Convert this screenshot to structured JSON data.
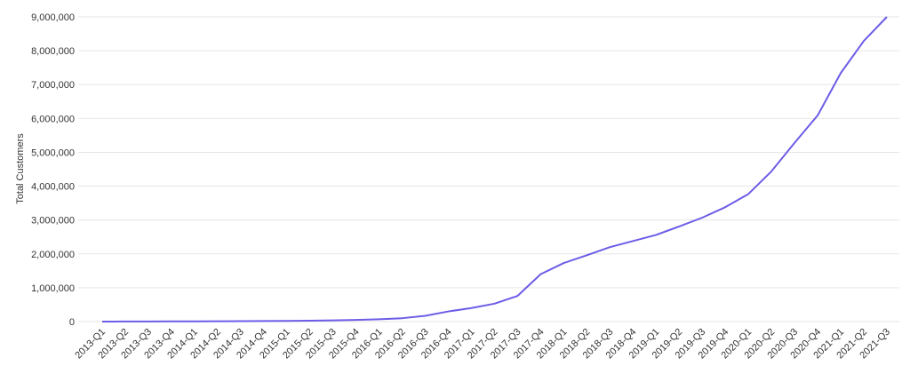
{
  "chart_data": {
    "type": "line",
    "y_label": "Total Customers",
    "categories": [
      "2013-Q1",
      "2013-Q2",
      "2013-Q3",
      "2013-Q4",
      "2014-Q1",
      "2014-Q2",
      "2014-Q3",
      "2014-Q4",
      "2015-Q1",
      "2015-Q2",
      "2015-Q3",
      "2015-Q4",
      "2016-Q1",
      "2016-Q2",
      "2016-Q3",
      "2016-Q4",
      "2017-Q1",
      "2017-Q2",
      "2017-Q3",
      "2017-Q4",
      "2018-Q1",
      "2018-Q2",
      "2018-Q3",
      "2018-Q4",
      "2019-Q1",
      "2019-Q2",
      "2019-Q3",
      "2019-Q4",
      "2020-Q1",
      "2020-Q2",
      "2020-Q3",
      "2020-Q4",
      "2021-Q1",
      "2021-Q2",
      "2021-Q3"
    ],
    "values": [
      0,
      2000,
      4000,
      6000,
      8000,
      10000,
      13000,
      17000,
      20000,
      25000,
      35000,
      50000,
      70000,
      100000,
      170000,
      300000,
      400000,
      530000,
      760000,
      1400000,
      1730000,
      1960000,
      2200000,
      2380000,
      2560000,
      2810000,
      3070000,
      3380000,
      3770000,
      4440000,
      5280000,
      6090000,
      7340000,
      8290000,
      9000000
    ],
    "color": "#6c5ce7",
    "ylim": [
      0,
      9000000
    ],
    "yticks": [
      0,
      {
        "value": 1000000,
        "label": "1,000,000"
      },
      {
        "value": 2000000,
        "label": "2,000,000"
      },
      {
        "value": 3000000,
        "label": "3,000,000"
      },
      {
        "value": 4000000,
        "label": "4,000,000"
      },
      {
        "value": 5000000,
        "label": "5,000,000"
      },
      {
        "value": 6000000,
        "label": "6,000,000"
      },
      {
        "value": 7000000,
        "label": "7,000,000"
      },
      {
        "value": 8000000,
        "label": "8,000,000"
      },
      {
        "value": 9000000,
        "label": "9,000,000"
      }
    ],
    "grid": true
  }
}
